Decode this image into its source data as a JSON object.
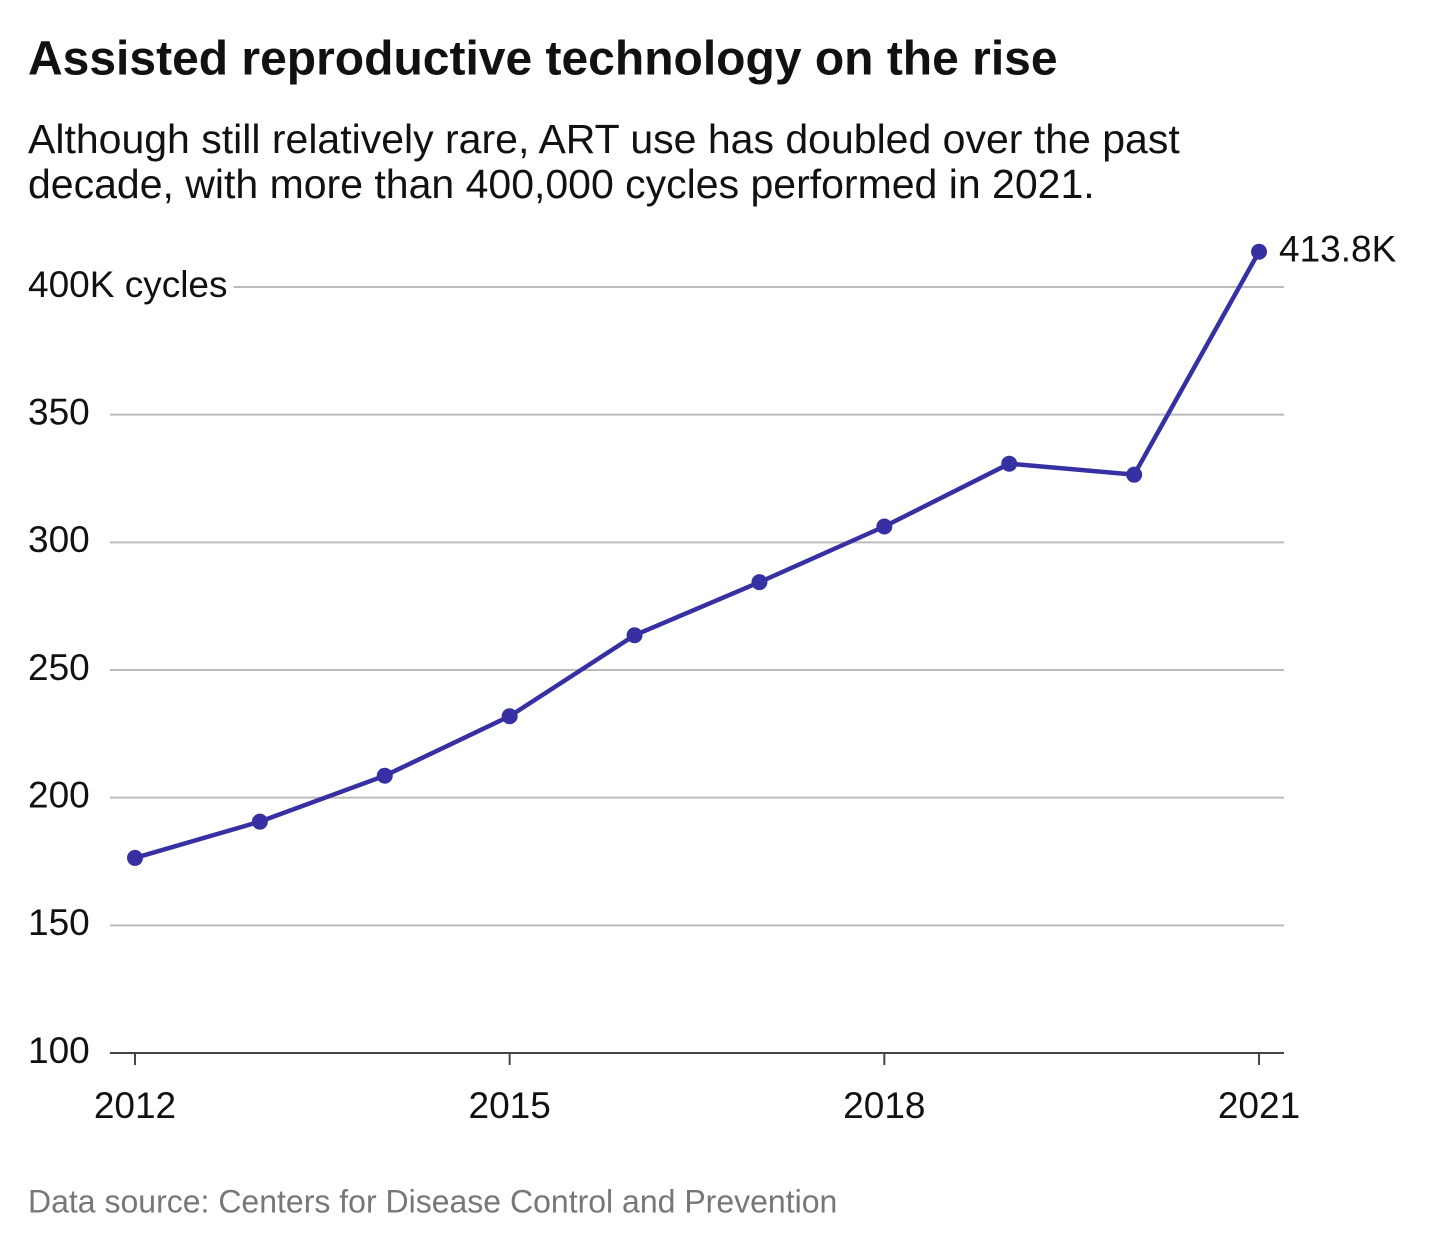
{
  "chart_data": {
    "type": "line",
    "title": "Assisted reproductive technology on the rise",
    "subtitle": [
      "Although still relatively rare, ART use has doubled over the past",
      "decade, with more than 400,000 cycles performed in 2021."
    ],
    "source": "Data source: Centers for Disease Control and Prevention",
    "x": [
      2012,
      2013,
      2014,
      2015,
      2016,
      2017,
      2018,
      2019,
      2020,
      2021
    ],
    "values": [
      176.4,
      190.6,
      208.6,
      231.9,
      263.6,
      284.4,
      306.2,
      330.8,
      326.5,
      413.8
    ],
    "value_labels": [
      null,
      null,
      null,
      null,
      null,
      null,
      null,
      null,
      null,
      "413.8K"
    ],
    "color": "#3730a3",
    "xlim": [
      2011.8,
      2021.2
    ],
    "xticks": [
      2012,
      2015,
      2018,
      2021
    ],
    "ylim": [
      100,
      400
    ],
    "yticks": [
      100,
      150,
      200,
      250,
      300,
      350,
      {
        "value": 400,
        "label": "400K cycles"
      }
    ],
    "grid": true
  }
}
